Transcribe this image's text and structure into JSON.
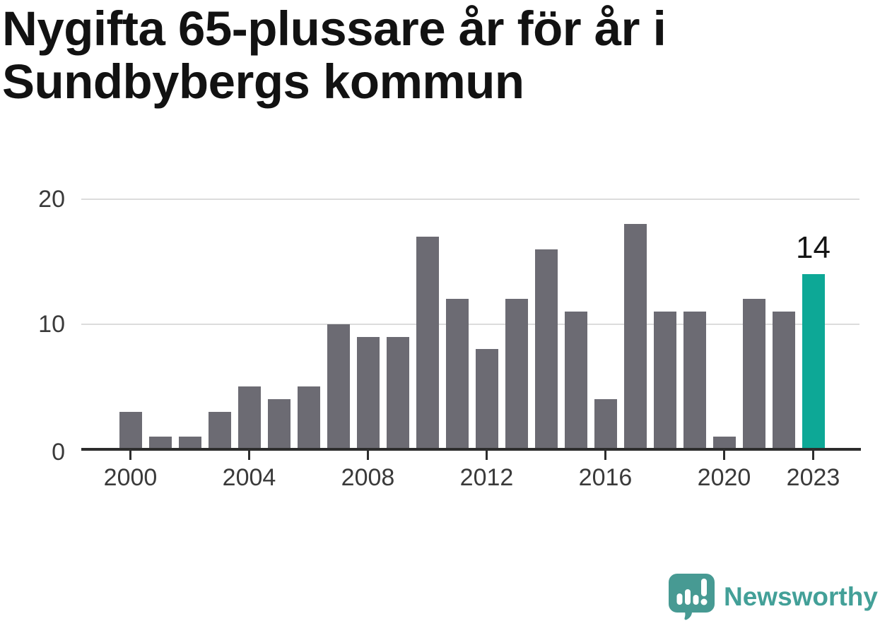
{
  "title": {
    "lines": [
      "Nygifta 65-plussare år för år i",
      "Sundbybergs kommun"
    ],
    "full": "Nygifta 65-plussare år för år i Sundbybergs kommun"
  },
  "chart_data": {
    "type": "bar",
    "title": "Nygifta 65-plussare år för år i Sundbybergs kommun",
    "x": [
      2000,
      2001,
      2002,
      2003,
      2004,
      2005,
      2006,
      2007,
      2008,
      2009,
      2010,
      2011,
      2012,
      2013,
      2014,
      2015,
      2016,
      2017,
      2018,
      2019,
      2020,
      2021,
      2022,
      2023
    ],
    "values": [
      3,
      1,
      1,
      3,
      5,
      4,
      5,
      10,
      9,
      9,
      17,
      12,
      8,
      12,
      16,
      11,
      4,
      18,
      11,
      11,
      1,
      12,
      11,
      14
    ],
    "highlight_year": 2023,
    "annotation": {
      "year": 2023,
      "text": "14"
    },
    "xticks": [
      2000,
      2004,
      2008,
      2012,
      2016,
      2020,
      2023
    ],
    "yticks": [
      0,
      10,
      20
    ],
    "ylim": [
      0,
      20
    ],
    "xlabel": "",
    "ylabel": "",
    "legend": "none",
    "grid": "horizontal",
    "bar_color": "#6c6b73",
    "highlight_color": "#0da896",
    "grid_color": "#dcdcdc",
    "axis_color": "#2d2d2d"
  },
  "footer": {
    "brand": "Newsworthy",
    "brand_color": "#43a098",
    "logo_icon": "speech-bubble-bar-chart-exclamation",
    "logo_bubble_color": "#479a93"
  }
}
